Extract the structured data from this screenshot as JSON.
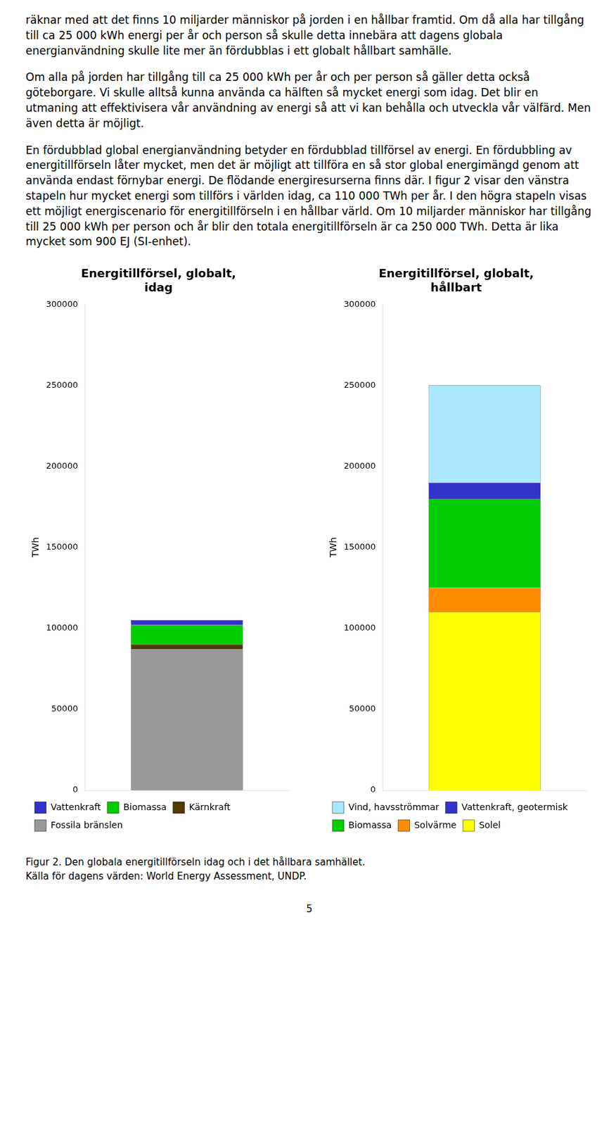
{
  "text": [
    "räknar med att det finns 10 miljarder människor på jorden i en hållbar framtid. Om då alla har tillgång till ca 25 000 kWh energi per år och person så skulle detta innebära att dagens globala energianvändning skulle lite mer än fördubblas i ett globalt hållbart samhälle.",
    "Om alla på jorden har tillgång till ca 25 000 kWh per år och per person så gäller detta också göteborgare. Vi skulle alltså kunna använda ca hälften så mycket energi som idag. Det blir en utmaning att effektivisera vår användning av energi så att vi kan behålla och utveckla vår välfärd. Men även detta är möjligt.",
    "En fördubblad global energianvändning betyder en fördubblad tillförsel av energi. En fördubbling av energitillförseln låter mycket, men det är möjligt att tillföra en så stor global energimängd genom att använda endast förnybar energi. De flödande energiresurserna finns där. I figur 2 visar den vänstra stapeln hur mycket energi som tillförs i världen idag, ca 110 000 TWh per år. I den högra stapeln visas ett möjligt energiscenario för energitillförseln i en hållbar värld. Om 10 miljarder människor har tillgång till 25 000 kWh per person och år blir den totala energitillförseln är ca 250 000 TWh. Detta är lika mycket som 900 EJ (SI-enhet)."
  ],
  "caption": [
    "Figur 2. Den globala energitillförseln idag och i det hållbara samhället.",
    "Källa för dagens värden: World Energy Assessment, UNDP."
  ],
  "page_number": "5",
  "chart_data": [
    {
      "type": "bar",
      "title": "Energitillförsel, globalt,\nidag",
      "categories": [
        null
      ],
      "series": [
        {
          "name": "Fossila bränslen",
          "color": "#999999",
          "values": [
            87000
          ]
        },
        {
          "name": "Kärnkraft",
          "color": "#4d3b00",
          "values": [
            3000
          ]
        },
        {
          "name": "Biomassa",
          "color": "#00cc00",
          "values": [
            12000
          ]
        },
        {
          "name": "Vattenkraft",
          "color": "#3333cc",
          "values": [
            3000
          ]
        }
      ],
      "ylabel": "TWh",
      "ylim": [
        0,
        300000
      ],
      "yticks": [
        0,
        50000,
        100000,
        150000,
        200000,
        250000,
        300000
      ],
      "stacked": true,
      "grid": false,
      "legend": "bottom",
      "tick_labels": "y"
    },
    {
      "type": "bar",
      "title": "Energitillförsel, globalt,\nhållbart",
      "categories": [
        null
      ],
      "series": [
        {
          "name": "Solel",
          "color": "#ffff00",
          "values": [
            110000
          ]
        },
        {
          "name": "Solvärme",
          "color": "#ff8c00",
          "values": [
            15000
          ]
        },
        {
          "name": "Biomassa",
          "color": "#00cc00",
          "values": [
            55000
          ]
        },
        {
          "name": "Vattenkraft, geotermisk",
          "color": "#3333cc",
          "values": [
            10000
          ]
        },
        {
          "name": "Vind, havsströmmar",
          "color": "#aae8ff",
          "values": [
            60000
          ]
        }
      ],
      "ylabel": "TWh",
      "ylim": [
        0,
        300000
      ],
      "yticks": [
        0,
        50000,
        100000,
        150000,
        200000,
        250000,
        300000
      ],
      "stacked": true,
      "grid": false,
      "legend": "bottom",
      "tick_labels": "y"
    }
  ]
}
